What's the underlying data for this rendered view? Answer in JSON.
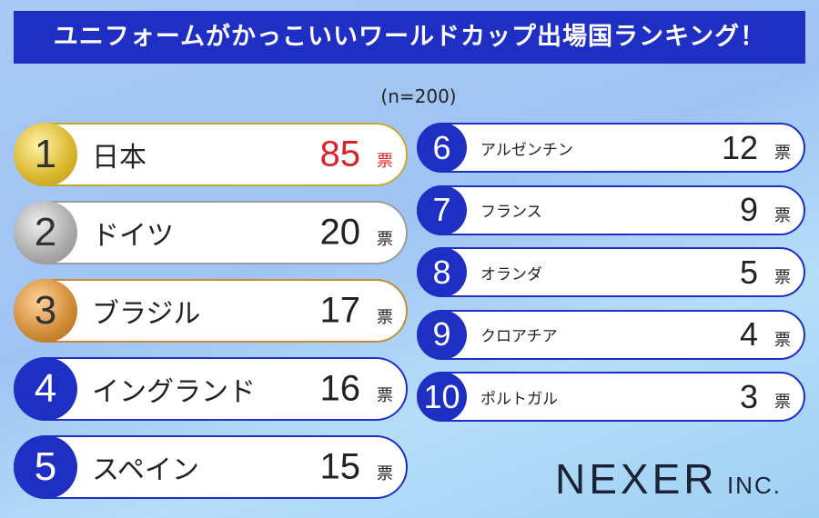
{
  "header": {
    "title": "ユニフォームがかっこいいワールドカップ出場国ランキング！"
  },
  "sample_note": "(n=200)",
  "unit": "票",
  "rankings": [
    {
      "rank": "1",
      "country": "日本",
      "votes": "85"
    },
    {
      "rank": "2",
      "country": "ドイツ",
      "votes": "20"
    },
    {
      "rank": "3",
      "country": "ブラジル",
      "votes": "17"
    },
    {
      "rank": "4",
      "country": "イングランド",
      "votes": "16"
    },
    {
      "rank": "5",
      "country": "スペイン",
      "votes": "15"
    },
    {
      "rank": "6",
      "country": "アルゼンチン",
      "votes": "12"
    },
    {
      "rank": "7",
      "country": "フランス",
      "votes": "9"
    },
    {
      "rank": "8",
      "country": "オランダ",
      "votes": "5"
    },
    {
      "rank": "9",
      "country": "クロアチア",
      "votes": "4"
    },
    {
      "rank": "10",
      "country": "ポルトガル",
      "votes": "3"
    }
  ],
  "brand": {
    "name": "NEXER",
    "suffix": "INC."
  }
}
